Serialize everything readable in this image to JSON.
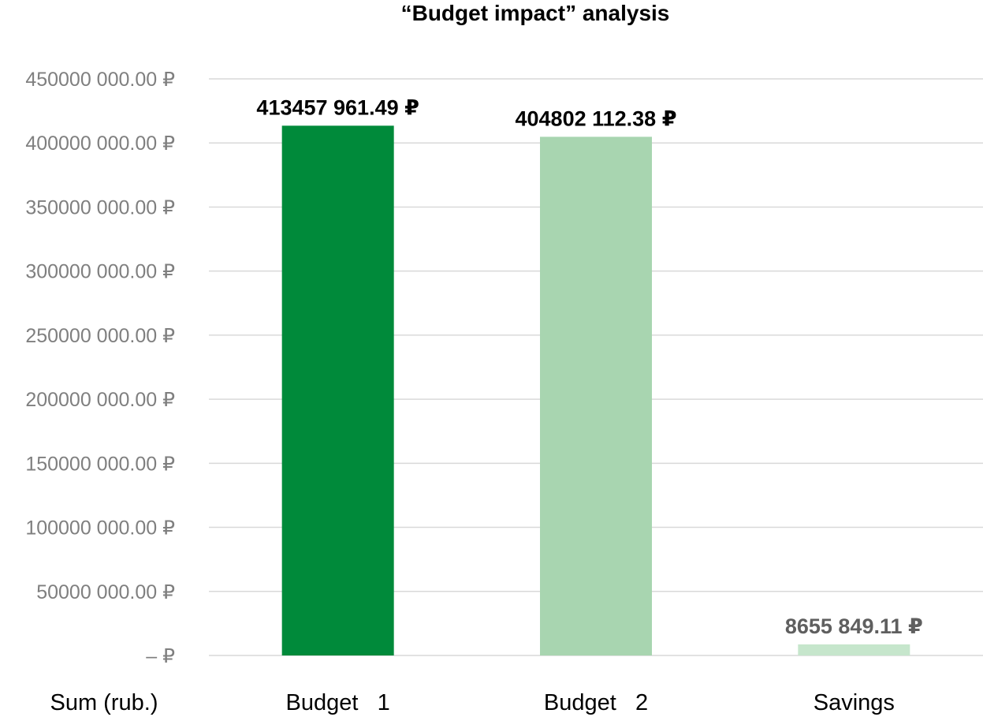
{
  "chart_data": {
    "type": "bar",
    "title": "“Budget impact” analysis",
    "xlabel": "Sum (rub.)",
    "ylabel": "",
    "categories": [
      "Budget   1",
      "Budget   2",
      "Savings"
    ],
    "values": [
      413457961.49,
      404802112.38,
      8655849.11
    ],
    "data_labels": [
      "413457 961.49 ₽",
      "404802 112.38 ₽",
      "8655 849.11 ₽"
    ],
    "colors": [
      "#008a3a",
      "#a8d5b0",
      "#c6e6cc"
    ],
    "data_label_colors": [
      "#000000",
      "#000000",
      "#5f5f5f"
    ],
    "ylim": [
      0,
      450000000
    ],
    "yticks": [
      0,
      50000000,
      100000000,
      150000000,
      200000000,
      250000000,
      300000000,
      350000000,
      400000000,
      450000000
    ],
    "ytick_labels": [
      "– ₽",
      "50000 000.00 ₽",
      "100000 000.00 ₽",
      "150000 000.00 ₽",
      "200000 000.00 ₽",
      "250000 000.00 ₽",
      "300000 000.00 ₽",
      "350000 000.00 ₽",
      "400000 000.00 ₽",
      "450000 000.00 ₽"
    ],
    "grid": true,
    "legend": "none"
  }
}
